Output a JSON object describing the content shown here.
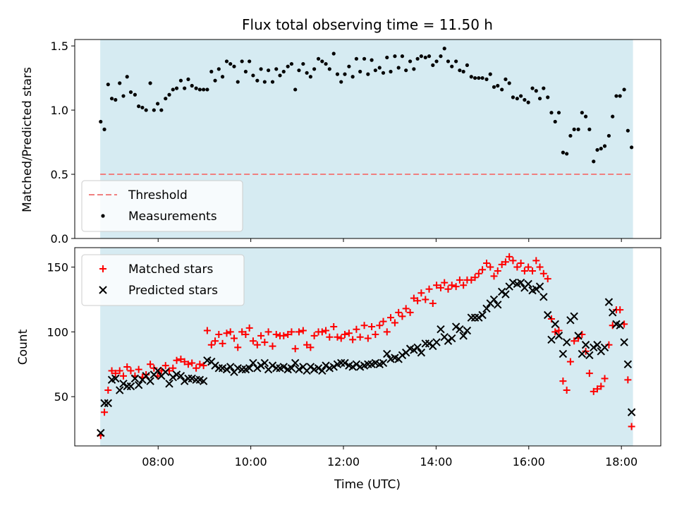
{
  "figure": {
    "title": "Flux total observing time = 11.50 h",
    "span_color": "#add8e6"
  },
  "chart_data": [
    {
      "type": "scatter",
      "ylabel": "Matched/Predicted stars",
      "xlim": [
        6.2,
        18.85
      ],
      "ylim": [
        0,
        1.55
      ],
      "span": [
        6.75,
        18.25
      ],
      "yticks": [
        0,
        0.5,
        1.0,
        1.5
      ],
      "ytick_labels": [
        "0.0",
        "0.5",
        "1.0",
        "1.5"
      ],
      "legend": {
        "position": "lower-left",
        "entries": [
          "Threshold",
          "Measurements"
        ]
      },
      "threshold": {
        "name": "Threshold",
        "value": 0.5,
        "color": "#f08080"
      },
      "series": [
        {
          "name": "Measurements",
          "color": "#000000",
          "marker": "dot",
          "x": [
            6.76,
            6.84,
            6.92,
            7.0,
            7.08,
            7.17,
            7.25,
            7.33,
            7.41,
            7.5,
            7.58,
            7.66,
            7.74,
            7.83,
            7.91,
            7.99,
            8.07,
            8.16,
            8.24,
            8.32,
            8.4,
            8.49,
            8.57,
            8.65,
            8.73,
            8.82,
            8.9,
            8.98,
            9.06,
            9.15,
            9.23,
            9.31,
            9.39,
            9.48,
            9.56,
            9.64,
            9.72,
            9.81,
            9.89,
            9.97,
            10.05,
            10.14,
            10.22,
            10.3,
            10.38,
            10.47,
            10.55,
            10.63,
            10.71,
            10.8,
            10.88,
            10.96,
            11.04,
            11.13,
            11.21,
            11.29,
            11.37,
            11.46,
            11.54,
            11.62,
            11.7,
            11.79,
            11.87,
            11.95,
            12.03,
            12.12,
            12.2,
            12.28,
            12.36,
            12.45,
            12.53,
            12.61,
            12.69,
            12.78,
            12.86,
            12.94,
            13.02,
            13.11,
            13.19,
            13.27,
            13.35,
            13.44,
            13.52,
            13.6,
            13.68,
            13.77,
            13.85,
            13.93,
            14.01,
            14.1,
            14.18,
            14.26,
            14.34,
            14.43,
            14.51,
            14.59,
            14.67,
            14.76,
            14.84,
            14.92,
            15.0,
            15.09,
            15.17,
            15.25,
            15.33,
            15.42,
            15.5,
            15.58,
            15.66,
            15.75,
            15.83,
            15.91,
            15.99,
            16.08,
            16.16,
            16.24,
            16.32,
            16.41,
            16.49,
            16.57,
            16.65,
            16.74,
            16.82,
            16.9,
            16.98,
            17.07,
            17.15,
            17.23,
            17.31,
            17.4,
            17.48,
            17.56,
            17.64,
            17.73,
            17.81,
            17.89,
            17.97,
            18.06,
            18.14,
            18.22
          ],
          "y": [
            0.91,
            0.85,
            1.2,
            1.09,
            1.08,
            1.21,
            1.11,
            1.26,
            1.14,
            1.12,
            1.03,
            1.02,
            1.0,
            1.21,
            1.0,
            1.05,
            1.0,
            1.09,
            1.12,
            1.16,
            1.17,
            1.23,
            1.17,
            1.24,
            1.19,
            1.17,
            1.16,
            1.16,
            1.16,
            1.3,
            1.23,
            1.32,
            1.26,
            1.38,
            1.36,
            1.34,
            1.22,
            1.38,
            1.3,
            1.38,
            1.27,
            1.23,
            1.32,
            1.22,
            1.31,
            1.22,
            1.32,
            1.27,
            1.3,
            1.34,
            1.36,
            1.16,
            1.31,
            1.36,
            1.29,
            1.26,
            1.32,
            1.4,
            1.38,
            1.36,
            1.32,
            1.44,
            1.28,
            1.22,
            1.28,
            1.34,
            1.26,
            1.4,
            1.3,
            1.4,
            1.28,
            1.39,
            1.31,
            1.33,
            1.29,
            1.41,
            1.3,
            1.42,
            1.33,
            1.42,
            1.31,
            1.38,
            1.32,
            1.4,
            1.42,
            1.41,
            1.42,
            1.35,
            1.38,
            1.42,
            1.48,
            1.38,
            1.34,
            1.38,
            1.31,
            1.3,
            1.35,
            1.26,
            1.25,
            1.25,
            1.25,
            1.24,
            1.28,
            1.18,
            1.19,
            1.16,
            1.24,
            1.21,
            1.1,
            1.09,
            1.11,
            1.08,
            1.06,
            1.17,
            1.15,
            1.09,
            1.17,
            1.1,
            0.98,
            0.91,
            0.98,
            0.67,
            0.66,
            0.8,
            0.85,
            0.85,
            0.98,
            0.95,
            0.85,
            0.6,
            0.69,
            0.7,
            0.72,
            0.8,
            0.95,
            1.11,
            1.11,
            1.16,
            0.84,
            0.71
          ]
        }
      ]
    },
    {
      "type": "scatter",
      "ylabel": "Count",
      "xlabel": "Time (UTC)",
      "xlim": [
        6.2,
        18.85
      ],
      "ylim": [
        12,
        165
      ],
      "span": [
        6.75,
        18.25
      ],
      "yticks": [
        50,
        100,
        150
      ],
      "ytick_labels": [
        "50",
        "100",
        "150"
      ],
      "xticks": [
        8,
        10,
        12,
        14,
        16,
        18
      ],
      "xtick_labels": [
        "08:00",
        "10:00",
        "12:00",
        "14:00",
        "16:00",
        "18:00"
      ],
      "legend": {
        "position": "upper-left",
        "entries": [
          "Matched stars",
          "Predicted stars"
        ]
      },
      "series": [
        {
          "name": "Matched stars",
          "color": "#ff0000",
          "marker": "plus",
          "x": [
            6.76,
            6.84,
            6.92,
            7.0,
            7.08,
            7.17,
            7.25,
            7.33,
            7.41,
            7.5,
            7.58,
            7.66,
            7.74,
            7.83,
            7.91,
            7.99,
            8.07,
            8.16,
            8.24,
            8.32,
            8.4,
            8.49,
            8.57,
            8.65,
            8.73,
            8.82,
            8.9,
            8.98,
            9.06,
            9.15,
            9.23,
            9.31,
            9.39,
            9.48,
            9.56,
            9.64,
            9.72,
            9.81,
            9.89,
            9.97,
            10.05,
            10.14,
            10.22,
            10.3,
            10.38,
            10.47,
            10.55,
            10.63,
            10.71,
            10.8,
            10.88,
            10.96,
            11.04,
            11.13,
            11.21,
            11.29,
            11.37,
            11.46,
            11.54,
            11.62,
            11.7,
            11.79,
            11.87,
            11.95,
            12.03,
            12.12,
            12.2,
            12.28,
            12.36,
            12.45,
            12.53,
            12.61,
            12.69,
            12.78,
            12.86,
            12.94,
            13.02,
            13.11,
            13.19,
            13.27,
            13.35,
            13.44,
            13.52,
            13.6,
            13.68,
            13.77,
            13.85,
            13.93,
            14.01,
            14.1,
            14.18,
            14.26,
            14.34,
            14.43,
            14.51,
            14.59,
            14.67,
            14.76,
            14.84,
            14.92,
            15.0,
            15.09,
            15.17,
            15.25,
            15.33,
            15.42,
            15.5,
            15.58,
            15.66,
            15.75,
            15.83,
            15.91,
            15.99,
            16.08,
            16.16,
            16.24,
            16.32,
            16.41,
            16.49,
            16.57,
            16.65,
            16.74,
            16.82,
            16.9,
            16.98,
            17.07,
            17.15,
            17.23,
            17.31,
            17.4,
            17.48,
            17.56,
            17.64,
            17.73,
            17.81,
            17.89,
            17.97,
            18.06,
            18.14,
            18.22
          ],
          "y": [
            20,
            38,
            55,
            70,
            68,
            70,
            66,
            73,
            70,
            66,
            71,
            65,
            67,
            75,
            72,
            66,
            70,
            74,
            70,
            72,
            78,
            79,
            77,
            75,
            76,
            72,
            75,
            74,
            101,
            90,
            93,
            98,
            91,
            99,
            100,
            95,
            88,
            100,
            98,
            103,
            93,
            90,
            97,
            92,
            100,
            89,
            98,
            97,
            97,
            98,
            100,
            87,
            100,
            101,
            90,
            88,
            97,
            100,
            100,
            101,
            96,
            104,
            96,
            95,
            98,
            99,
            94,
            102,
            96,
            105,
            95,
            104,
            98,
            105,
            108,
            100,
            111,
            107,
            115,
            112,
            118,
            115,
            126,
            124,
            130,
            125,
            133,
            122,
            136,
            134,
            138,
            133,
            136,
            135,
            140,
            136,
            140,
            140,
            142,
            145,
            148,
            153,
            150,
            143,
            147,
            152,
            154,
            158,
            155,
            150,
            153,
            147,
            150,
            147,
            155,
            150,
            145,
            141,
            110,
            100,
            101,
            62,
            55,
            77,
            93,
            95,
            98,
            85,
            68,
            54,
            56,
            58,
            64,
            90,
            105,
            117,
            117,
            106,
            63,
            27
          ]
        },
        {
          "name": "Predicted stars",
          "color": "#000000",
          "marker": "x",
          "x": [
            6.76,
            6.84,
            6.92,
            7.0,
            7.08,
            7.17,
            7.25,
            7.33,
            7.41,
            7.5,
            7.58,
            7.66,
            7.74,
            7.83,
            7.91,
            7.99,
            8.07,
            8.16,
            8.24,
            8.32,
            8.4,
            8.49,
            8.57,
            8.65,
            8.73,
            8.82,
            8.9,
            8.98,
            9.06,
            9.15,
            9.23,
            9.31,
            9.39,
            9.48,
            9.56,
            9.64,
            9.72,
            9.81,
            9.89,
            9.97,
            10.05,
            10.14,
            10.22,
            10.3,
            10.38,
            10.47,
            10.55,
            10.63,
            10.71,
            10.8,
            10.88,
            10.96,
            11.04,
            11.13,
            11.21,
            11.29,
            11.37,
            11.46,
            11.54,
            11.62,
            11.7,
            11.79,
            11.87,
            11.95,
            12.03,
            12.12,
            12.2,
            12.28,
            12.36,
            12.45,
            12.53,
            12.61,
            12.69,
            12.78,
            12.86,
            12.94,
            13.02,
            13.11,
            13.19,
            13.27,
            13.35,
            13.44,
            13.52,
            13.6,
            13.68,
            13.77,
            13.85,
            13.93,
            14.01,
            14.1,
            14.18,
            14.26,
            14.34,
            14.43,
            14.51,
            14.59,
            14.67,
            14.76,
            14.84,
            14.92,
            15.0,
            15.09,
            15.17,
            15.25,
            15.33,
            15.42,
            15.5,
            15.58,
            15.66,
            15.75,
            15.83,
            15.91,
            15.99,
            16.08,
            16.16,
            16.24,
            16.32,
            16.41,
            16.49,
            16.57,
            16.65,
            16.74,
            16.82,
            16.9,
            16.98,
            17.07,
            17.15,
            17.23,
            17.31,
            17.4,
            17.48,
            17.56,
            17.64,
            17.73,
            17.81,
            17.89,
            17.97,
            18.06,
            18.14,
            18.22
          ],
          "y": [
            22,
            45,
            45,
            63,
            64,
            55,
            60,
            58,
            58,
            64,
            59,
            63,
            66,
            62,
            67,
            70,
            66,
            69,
            60,
            65,
            67,
            66,
            62,
            64,
            64,
            63,
            63,
            62,
            78,
            77,
            74,
            72,
            72,
            71,
            73,
            69,
            72,
            71,
            71,
            72,
            76,
            72,
            74,
            76,
            71,
            74,
            72,
            72,
            73,
            71,
            72,
            76,
            71,
            73,
            70,
            73,
            71,
            72,
            70,
            74,
            72,
            73,
            75,
            76,
            76,
            74,
            73,
            75,
            73,
            74,
            75,
            75,
            76,
            75,
            76,
            83,
            79,
            80,
            79,
            82,
            84,
            87,
            86,
            88,
            84,
            91,
            91,
            89,
            92,
            102,
            96,
            93,
            95,
            104,
            102,
            97,
            101,
            111,
            111,
            111,
            113,
            118,
            122,
            125,
            121,
            131,
            129,
            135,
            138,
            137,
            138,
            134,
            137,
            132,
            133,
            135,
            127,
            113,
            94,
            106,
            97,
            83,
            92,
            109,
            112,
            97,
            83,
            90,
            82,
            88,
            90,
            85,
            88,
            123,
            115,
            106,
            105,
            92,
            75,
            38
          ]
        }
      ]
    }
  ]
}
